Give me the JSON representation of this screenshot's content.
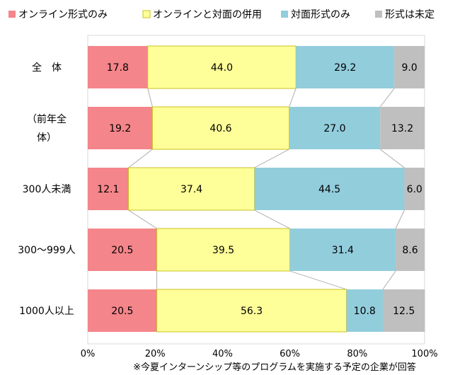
{
  "chart_data": {
    "type": "bar",
    "orientation": "horizontal",
    "stacked": true,
    "percent": true,
    "categories": [
      [
        "全　体"
      ],
      [
        "（前年全",
        "体）"
      ],
      [
        "300人未満"
      ],
      [
        "300～999人"
      ],
      [
        "1000人以上"
      ]
    ],
    "series": [
      {
        "name": "オンライン形式のみ",
        "color": "#f4858a",
        "values": [
          17.8,
          19.2,
          12.1,
          20.5,
          20.5
        ],
        "labels": [
          "17.8",
          "19.2",
          "12.1",
          "20.5",
          "20.5"
        ]
      },
      {
        "name": "オンラインと対面の併用",
        "color": "#ffff99",
        "border": "#c9c21e",
        "values": [
          44.0,
          40.6,
          37.4,
          39.5,
          56.3
        ],
        "labels": [
          "44.0",
          "40.6",
          "37.4",
          "39.5",
          "56.3"
        ]
      },
      {
        "name": "対面形式のみ",
        "color": "#92cddc",
        "values": [
          29.2,
          27.0,
          44.5,
          31.4,
          10.8
        ],
        "labels": [
          "29.2",
          "27.0",
          "44.5",
          "31.4",
          "10.8"
        ]
      },
      {
        "name": "形式は未定",
        "color": "#bfbfbf",
        "values": [
          9.0,
          13.2,
          6.0,
          8.6,
          12.5
        ],
        "labels": [
          "9.0",
          "13.2",
          "6.0",
          "8.6",
          "12.5"
        ]
      }
    ],
    "x_ticks": [
      "0%",
      "20%",
      "40%",
      "60%",
      "80%",
      "100%"
    ],
    "xlim": [
      0,
      100
    ],
    "legend_position": "top",
    "footnote": "※今夏インターンシップ等のプログラムを実施する予定の企業が回答"
  }
}
